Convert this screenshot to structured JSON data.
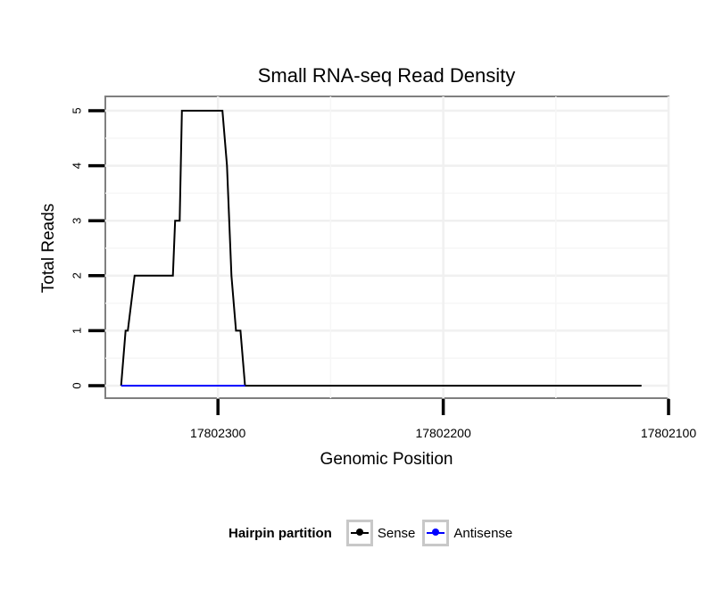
{
  "chart_data": {
    "type": "line",
    "title": "Small RNA-seq Read Density",
    "xlabel": "Genomic Position",
    "ylabel": "Total Reads",
    "x_reversed": true,
    "xlim": [
      17802350,
      17802100
    ],
    "ylim": [
      0,
      5
    ],
    "x_ticks": [
      17802300,
      17802200,
      17802100
    ],
    "x_tick_labels": [
      "17802300",
      "17802200",
      "17802100"
    ],
    "y_ticks": [
      0,
      1,
      2,
      3,
      4,
      5
    ],
    "y_tick_labels": [
      "0",
      "1",
      "2",
      "3",
      "4",
      "5"
    ],
    "grid": true,
    "legend": {
      "title": "Hairpin partition",
      "position": "bottom",
      "entries": [
        {
          "label": "Sense",
          "color": "#000000"
        },
        {
          "label": "Antisense",
          "color": "#0000ff"
        }
      ]
    },
    "series": [
      {
        "name": "Sense",
        "color": "#000000",
        "x": [
          17802343,
          17802341,
          17802340,
          17802337,
          17802336,
          17802320,
          17802319,
          17802317,
          17802316,
          17802314,
          17802298,
          17802296,
          17802294,
          17802292,
          17802290,
          17802288,
          17802112
        ],
        "y": [
          0,
          1,
          1,
          2,
          2,
          2,
          3,
          3,
          5,
          5,
          5,
          4,
          2,
          1,
          1,
          0,
          0
        ]
      },
      {
        "name": "Antisense",
        "color": "#0000ff",
        "x": [
          17802343,
          17802288
        ],
        "y": [
          0,
          0
        ]
      }
    ]
  }
}
